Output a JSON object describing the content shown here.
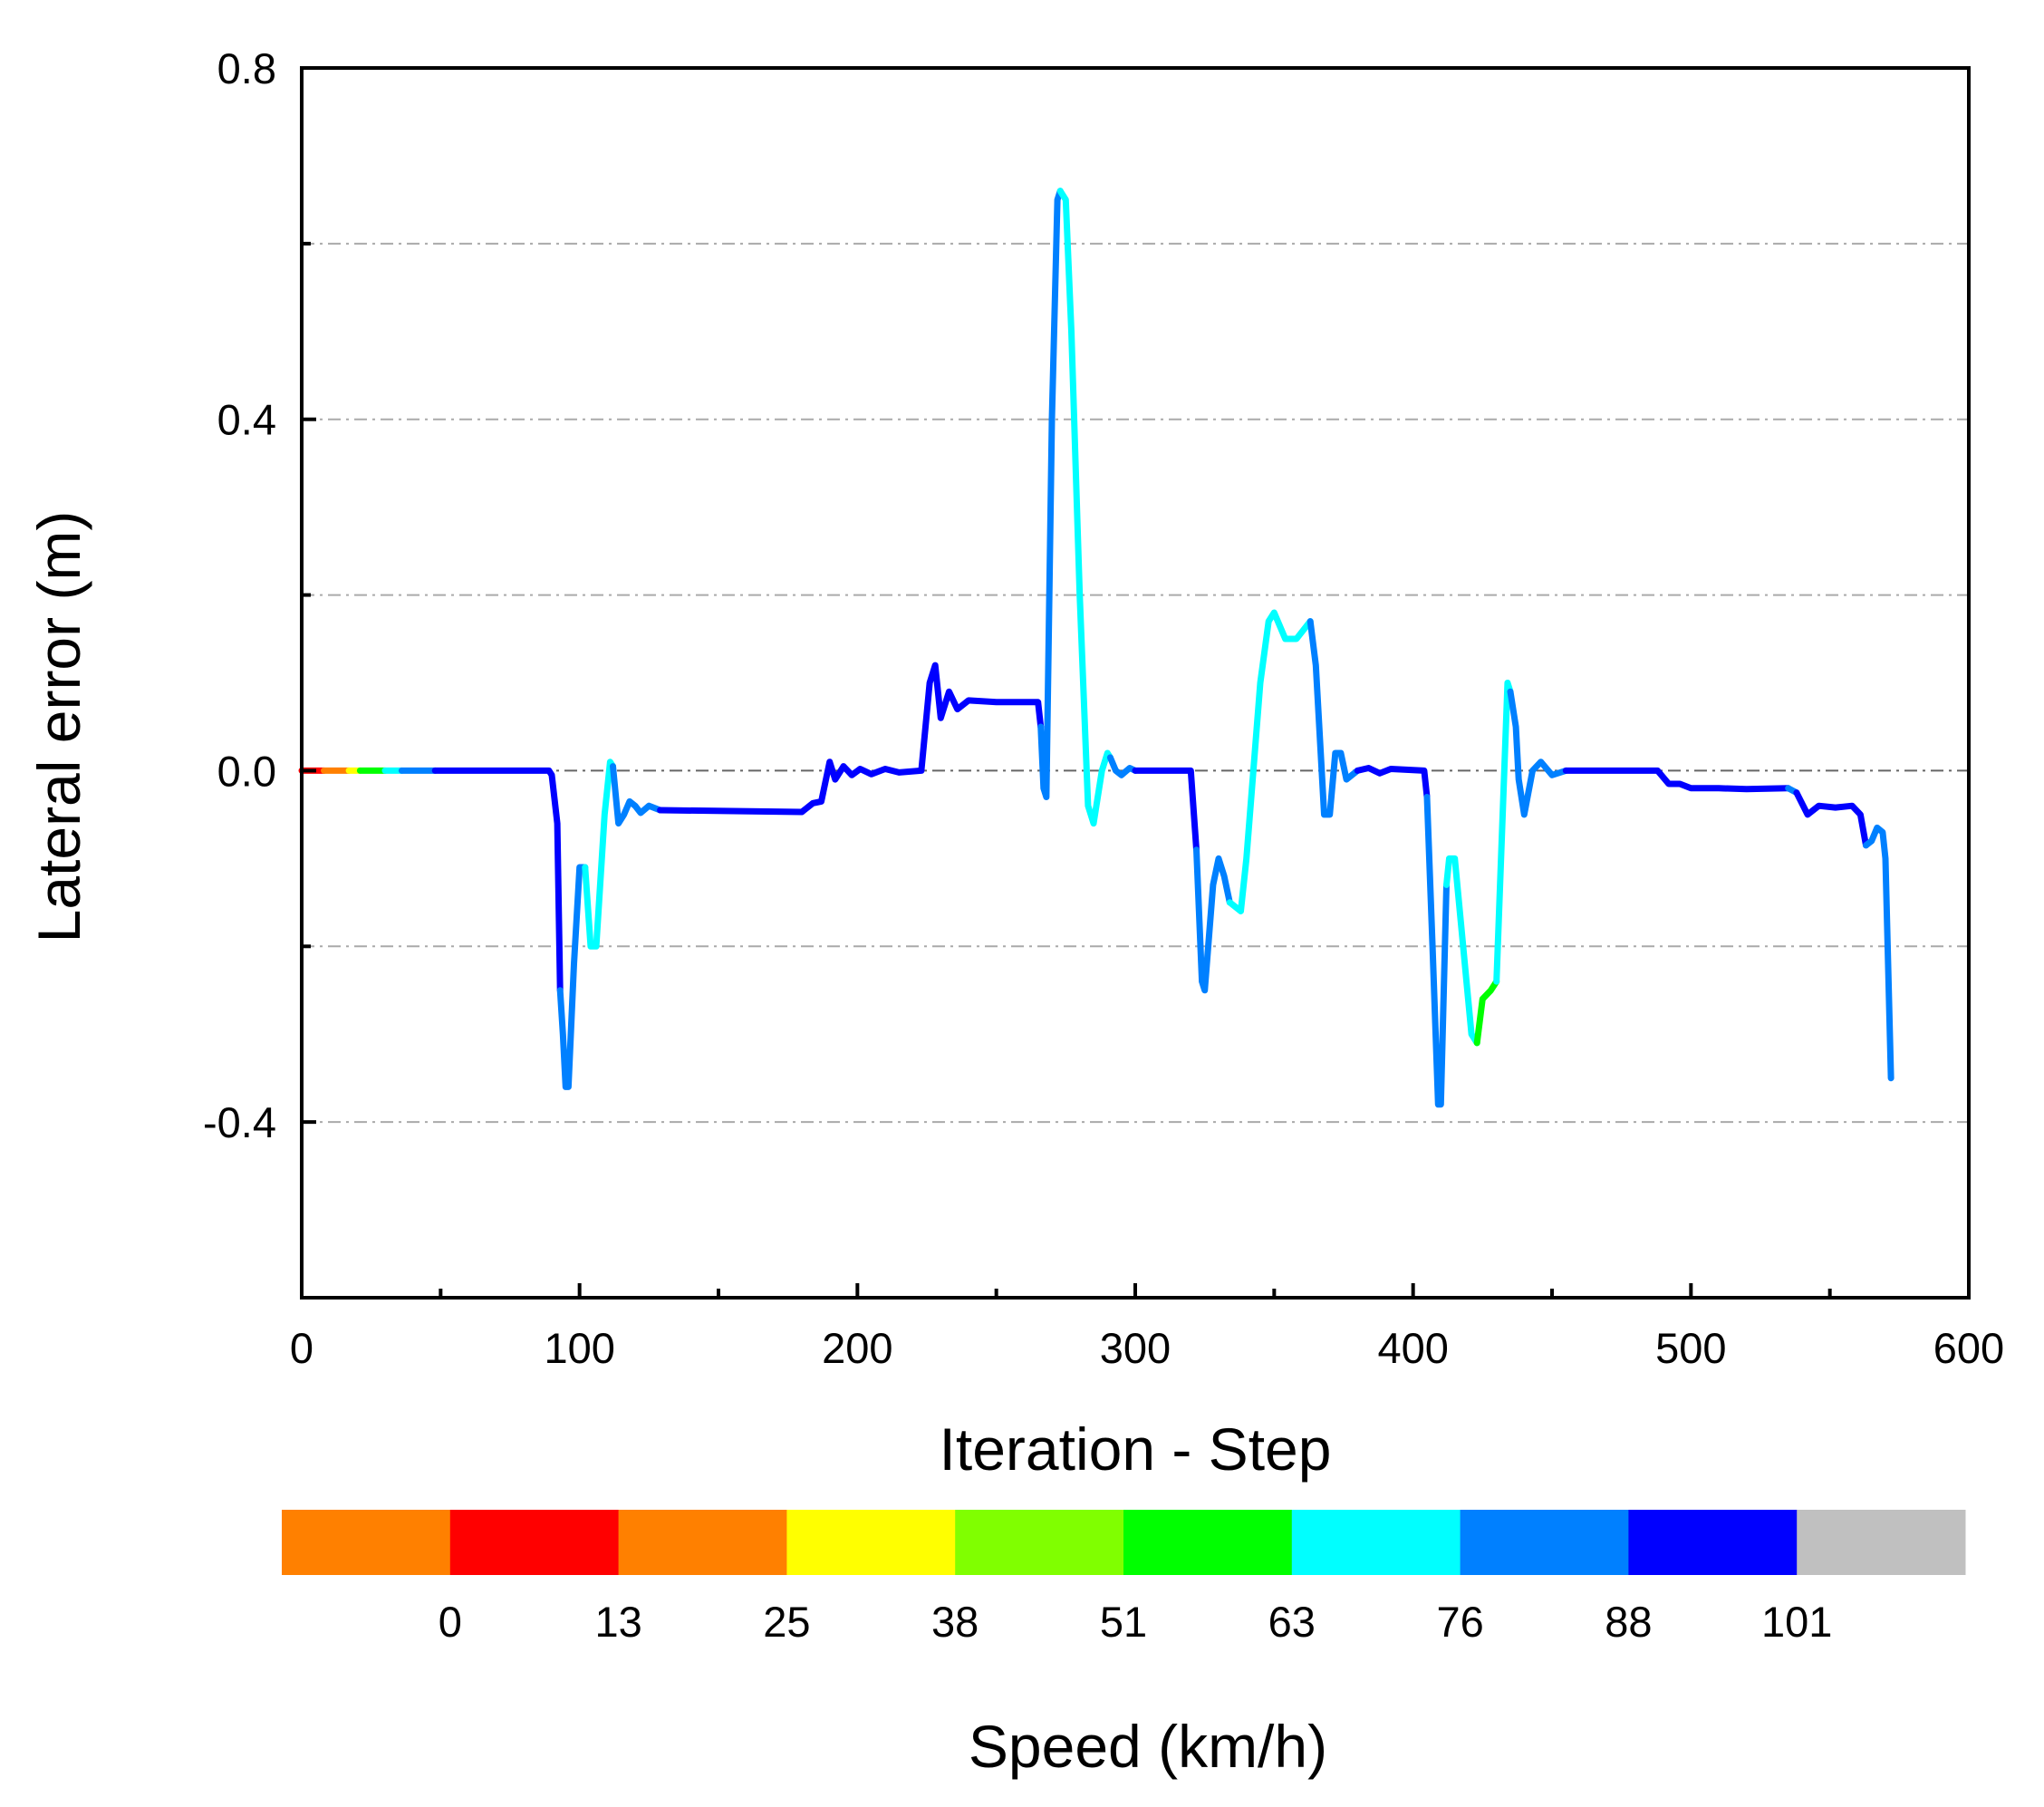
{
  "chart_data": {
    "type": "line",
    "title": "",
    "xlabel": "Iteration - Step",
    "ylabel": "Lateral error (m)",
    "xlim": [
      0,
      600
    ],
    "ylim": [
      -0.6,
      0.8
    ],
    "xticks": [
      0,
      100,
      200,
      300,
      400,
      500,
      600
    ],
    "xtick_labels": [
      "0",
      "100",
      "200",
      "300",
      "400",
      "500",
      "600"
    ],
    "x_minor_ticks": [
      50,
      150,
      250,
      350,
      450,
      550
    ],
    "yticks": [
      0.8,
      0.4,
      0.0,
      -0.4
    ],
    "ytick_labels": [
      "0.8",
      "0.4",
      "0.0",
      "-0.4"
    ],
    "y_minor_ticks": [
      0.6,
      0.2,
      -0.2
    ],
    "gridlines_y": [
      0.6,
      0.4,
      0.2,
      0.0,
      -0.2,
      -0.4
    ],
    "grid": true,
    "colorbar": {
      "title": "Speed (km/h)",
      "labels": [
        "0",
        "13",
        "25",
        "38",
        "51",
        "63",
        "76",
        "88",
        "101"
      ],
      "colors": [
        "#ff8000",
        "#ff0000",
        "#ff8000",
        "#ffff00",
        "#80ff00",
        "#00ff00",
        "#00ffff",
        "#0080ff",
        "#0000ff",
        "#c0c0c0"
      ]
    },
    "segments": [
      {
        "color": "#ff0000",
        "points": [
          [
            0,
            0
          ],
          [
            8,
            0
          ]
        ]
      },
      {
        "color": "#ff8000",
        "points": [
          [
            8,
            0
          ],
          [
            17,
            0
          ]
        ]
      },
      {
        "color": "#ffff00",
        "points": [
          [
            17,
            0
          ],
          [
            21,
            0
          ]
        ]
      },
      {
        "color": "#00ff00",
        "points": [
          [
            21,
            0
          ],
          [
            30,
            0
          ]
        ]
      },
      {
        "color": "#00ffff",
        "points": [
          [
            30,
            0
          ],
          [
            36,
            0
          ]
        ]
      },
      {
        "color": "#0080ff",
        "points": [
          [
            36,
            0
          ],
          [
            48,
            0
          ]
        ]
      },
      {
        "color": "#0000ff",
        "points": [
          [
            48,
            0
          ],
          [
            89,
            0
          ],
          [
            90,
            -0.005
          ],
          [
            92,
            -0.06
          ],
          [
            93,
            -0.25
          ]
        ]
      },
      {
        "color": "#0080ff",
        "points": [
          [
            93,
            -0.25
          ],
          [
            94,
            -0.3
          ],
          [
            95,
            -0.36
          ],
          [
            96,
            -0.36
          ],
          [
            98,
            -0.22
          ],
          [
            100,
            -0.11
          ],
          [
            102,
            -0.11
          ]
        ]
      },
      {
        "color": "#00ffff",
        "points": [
          [
            102,
            -0.11
          ],
          [
            104,
            -0.2
          ],
          [
            106,
            -0.2
          ],
          [
            109,
            -0.05
          ],
          [
            111,
            0.01
          ],
          [
            112,
            0.005
          ]
        ]
      },
      {
        "color": "#0080ff",
        "points": [
          [
            112,
            0.005
          ],
          [
            114,
            -0.06
          ],
          [
            116,
            -0.05
          ],
          [
            118,
            -0.035
          ],
          [
            120,
            -0.04
          ],
          [
            122,
            -0.048
          ],
          [
            125,
            -0.04
          ],
          [
            129,
            -0.045
          ]
        ]
      },
      {
        "color": "#0000ff",
        "points": [
          [
            129,
            -0.045
          ],
          [
            180,
            -0.047
          ],
          [
            184,
            -0.037
          ],
          [
            187,
            -0.035
          ],
          [
            190,
            0.01
          ],
          [
            192,
            -0.01
          ],
          [
            195,
            0.005
          ],
          [
            198,
            -0.005
          ],
          [
            201,
            0.002
          ],
          [
            205,
            -0.004
          ],
          [
            210,
            0.002
          ],
          [
            215,
            -0.002
          ],
          [
            223,
            0.0
          ],
          [
            226,
            0.1
          ],
          [
            228,
            0.12
          ],
          [
            230,
            0.06
          ],
          [
            233,
            0.09
          ],
          [
            236,
            0.07
          ],
          [
            240,
            0.08
          ],
          [
            250,
            0.078
          ],
          [
            265,
            0.078
          ],
          [
            266,
            0.05
          ]
        ]
      },
      {
        "color": "#0080ff",
        "points": [
          [
            266,
            0.05
          ],
          [
            267,
            -0.02
          ],
          [
            268,
            -0.03
          ],
          [
            270,
            0.4
          ],
          [
            272,
            0.65
          ],
          [
            273,
            0.66
          ]
        ]
      },
      {
        "color": "#00ffff",
        "points": [
          [
            273,
            0.66
          ],
          [
            275,
            0.65
          ],
          [
            277,
            0.5
          ],
          [
            280,
            0.2
          ],
          [
            283,
            -0.04
          ],
          [
            285,
            -0.06
          ],
          [
            288,
            0.0
          ],
          [
            290,
            0.02
          ],
          [
            291,
            0.015
          ]
        ]
      },
      {
        "color": "#0080ff",
        "points": [
          [
            291,
            0.015
          ],
          [
            293,
            0.0
          ],
          [
            295,
            -0.005
          ],
          [
            298,
            0.003
          ],
          [
            300,
            0.0
          ]
        ]
      },
      {
        "color": "#0000ff",
        "points": [
          [
            300,
            0.0
          ],
          [
            320,
            0.0
          ],
          [
            322,
            -0.09
          ]
        ]
      },
      {
        "color": "#0080ff",
        "points": [
          [
            322,
            -0.09
          ],
          [
            324,
            -0.24
          ],
          [
            325,
            -0.25
          ],
          [
            328,
            -0.13
          ],
          [
            330,
            -0.1
          ],
          [
            332,
            -0.12
          ],
          [
            334,
            -0.15
          ]
        ]
      },
      {
        "color": "#00ffff",
        "points": [
          [
            334,
            -0.15
          ],
          [
            338,
            -0.16
          ],
          [
            340,
            -0.1
          ],
          [
            345,
            0.1
          ],
          [
            348,
            0.17
          ],
          [
            350,
            0.18
          ],
          [
            354,
            0.15
          ],
          [
            358,
            0.15
          ],
          [
            363,
            0.17
          ]
        ]
      },
      {
        "color": "#0080ff",
        "points": [
          [
            363,
            0.17
          ],
          [
            365,
            0.12
          ],
          [
            368,
            -0.05
          ],
          [
            370,
            -0.05
          ],
          [
            372,
            0.02
          ],
          [
            374,
            0.02
          ],
          [
            376,
            -0.01
          ],
          [
            378,
            -0.005
          ],
          [
            380,
            0.0
          ]
        ]
      },
      {
        "color": "#0000ff",
        "points": [
          [
            380,
            0.0
          ],
          [
            384,
            0.003
          ],
          [
            388,
            -0.003
          ],
          [
            392,
            0.002
          ],
          [
            404,
            0.0
          ],
          [
            405,
            -0.03
          ]
        ]
      },
      {
        "color": "#0080ff",
        "points": [
          [
            405,
            -0.03
          ],
          [
            407,
            -0.2
          ],
          [
            409,
            -0.38
          ],
          [
            410,
            -0.38
          ],
          [
            412,
            -0.13
          ]
        ]
      },
      {
        "color": "#00ffff",
        "points": [
          [
            412,
            -0.13
          ],
          [
            413,
            -0.1
          ],
          [
            415,
            -0.1
          ],
          [
            418,
            -0.2
          ],
          [
            421,
            -0.3
          ],
          [
            423,
            -0.31
          ]
        ]
      },
      {
        "color": "#00ff00",
        "points": [
          [
            423,
            -0.31
          ],
          [
            425,
            -0.26
          ],
          [
            428,
            -0.25
          ],
          [
            430,
            -0.24
          ]
        ]
      },
      {
        "color": "#00ffff",
        "points": [
          [
            430,
            -0.24
          ],
          [
            434,
            0.1
          ],
          [
            435,
            0.09
          ]
        ]
      },
      {
        "color": "#0080ff",
        "points": [
          [
            435,
            0.09
          ],
          [
            437,
            0.05
          ],
          [
            438,
            -0.01
          ],
          [
            440,
            -0.05
          ],
          [
            443,
            0.0
          ],
          [
            446,
            0.01
          ],
          [
            450,
            -0.005
          ],
          [
            455,
            0.0
          ]
        ]
      },
      {
        "color": "#0000ff",
        "points": [
          [
            455,
            0.0
          ],
          [
            488,
            0.0
          ],
          [
            492,
            -0.015
          ],
          [
            496,
            -0.015
          ],
          [
            500,
            -0.02
          ],
          [
            510,
            -0.02
          ],
          [
            520,
            -0.021
          ],
          [
            535,
            -0.02
          ]
        ]
      },
      {
        "color": "#0080ff",
        "points": [
          [
            535,
            -0.02
          ],
          [
            538,
            -0.025
          ]
        ]
      },
      {
        "color": "#0000ff",
        "points": [
          [
            538,
            -0.025
          ],
          [
            542,
            -0.05
          ],
          [
            546,
            -0.04
          ],
          [
            552,
            -0.042
          ],
          [
            558,
            -0.04
          ],
          [
            561,
            -0.05
          ],
          [
            563,
            -0.085
          ]
        ]
      },
      {
        "color": "#0080ff",
        "points": [
          [
            563,
            -0.085
          ],
          [
            565,
            -0.08
          ],
          [
            567,
            -0.065
          ],
          [
            569,
            -0.07
          ],
          [
            570,
            -0.1
          ],
          [
            572,
            -0.35
          ]
        ]
      }
    ]
  }
}
